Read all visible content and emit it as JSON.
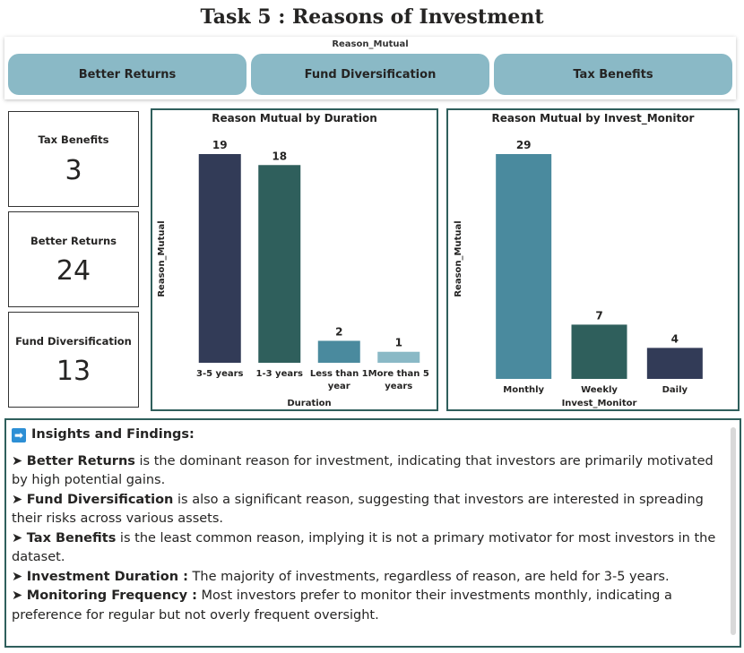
{
  "page_title": "Task 5 : Reasons of Investment",
  "slicer": {
    "header": "Reason_Mutual",
    "options": [
      "Better Returns",
      "Fund Diversification",
      "Tax Benefits"
    ]
  },
  "cards": [
    {
      "label": "Tax Benefits",
      "value": "3"
    },
    {
      "label": "Better Returns",
      "value": "24"
    },
    {
      "label": "Fund Diversification",
      "value": "13"
    }
  ],
  "colors": {
    "navy": "#323b57",
    "dark_teal": "#2f5f5c",
    "steel_blue": "#4a8a9e",
    "light_blue": "#8ab9c6",
    "slicer_button": "#8ab9c6"
  },
  "chart_data": [
    {
      "type": "bar",
      "title": "Reason Mutual by Duration",
      "xlabel": "Duration",
      "ylabel": "Reason_Mutual",
      "categories": [
        "3-5 years",
        "1-3 years",
        "Less than 1 year",
        "More than 5 years"
      ],
      "values": [
        19,
        18,
        2,
        1
      ],
      "bar_colors": [
        "#323b57",
        "#2f5f5c",
        "#4a8a9e",
        "#8ab9c6"
      ],
      "ylim": [
        0,
        19
      ],
      "grid": false
    },
    {
      "type": "bar",
      "title": "Reason Mutual by Invest_Monitor",
      "xlabel": "Invest_Monitor",
      "ylabel": "Reason_Mutual",
      "categories": [
        "Monthly",
        "Weekly",
        "Daily"
      ],
      "values": [
        29,
        7,
        4
      ],
      "bar_colors": [
        "#4a8a9e",
        "#2f5f5c",
        "#323b57"
      ],
      "ylim": [
        0,
        29
      ],
      "grid": false
    }
  ],
  "insights": {
    "heading": "Insights and Findings:",
    "items": [
      {
        "bold": "Better Returns",
        "text": " is the dominant reason for investment, indicating that investors are primarily motivated by high potential gains."
      },
      {
        "bold": "Fund Diversification",
        "text": " is also a significant reason, suggesting that investors are interested in spreading their risks across various assets."
      },
      {
        "bold": "Tax Benefits",
        "text": " is the least common reason, implying it is not a primary motivator for most investors in the dataset."
      },
      {
        "bold": "Investment Duration :",
        "text": " The majority of investments, regardless of reason, are held for 3-5 years."
      },
      {
        "bold": "Monitoring Frequency :",
        "text": " Most investors prefer to monitor their investments monthly, indicating a preference for regular but not overly frequent oversight."
      }
    ]
  }
}
